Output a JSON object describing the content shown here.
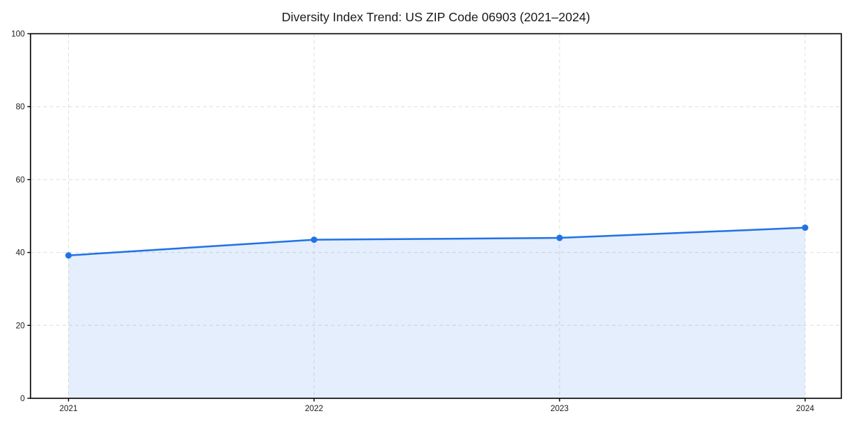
{
  "figure": {
    "background": "#ffffff"
  },
  "chart_data": {
    "type": "line",
    "title": "Diversity Index Trend: US ZIP Code 06903 (2021–2024)",
    "x": [
      2021,
      2022,
      2023,
      2024
    ],
    "xticks": [
      "2021",
      "2022",
      "2023",
      "2024"
    ],
    "series": [
      {
        "name": "Diversity Index",
        "values": [
          39.2,
          43.5,
          44.0,
          46.8
        ]
      }
    ],
    "xlabel": "",
    "ylabel": "",
    "ylim": [
      0,
      100
    ],
    "yticks": [
      0,
      20,
      40,
      60,
      80,
      100
    ],
    "grid": true,
    "grid_style": "dashed",
    "legend_position": "none",
    "area_fill_to_zero": true,
    "colors": {
      "line": "#2272e6",
      "marker": "#2272e6",
      "area_fill": "rgba(34,114,230,0.12)",
      "grid": "#dedede",
      "axis": "#000000",
      "tick_label": "#1a1a1a",
      "title": "#1a1a1a",
      "background": "#ffffff"
    }
  }
}
